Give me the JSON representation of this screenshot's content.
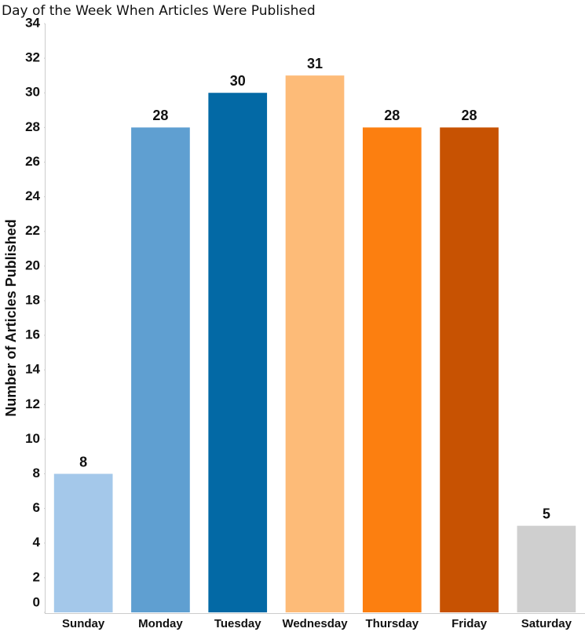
{
  "chart_data": {
    "type": "bar",
    "title": "Day of the Week When Articles Were Published",
    "y_label": "Number of Articles Published",
    "categories": [
      "Sunday",
      "Monday",
      "Tuesday",
      "Wednesday",
      "Thursday",
      "Friday",
      "Saturday"
    ],
    "values": [
      8,
      28,
      30,
      31,
      28,
      28,
      5
    ],
    "colors": [
      "#a4c8ea",
      "#5f9fd1",
      "#0369a5",
      "#fdbb78",
      "#fc7f10",
      "#c75202",
      "#cfcfcf"
    ],
    "ylim": [
      0,
      34
    ],
    "yticks": [
      0,
      2,
      4,
      6,
      8,
      10,
      12,
      14,
      16,
      18,
      20,
      22,
      24,
      26,
      28,
      30,
      32,
      34
    ],
    "grid": false,
    "show_value_labels": true
  }
}
